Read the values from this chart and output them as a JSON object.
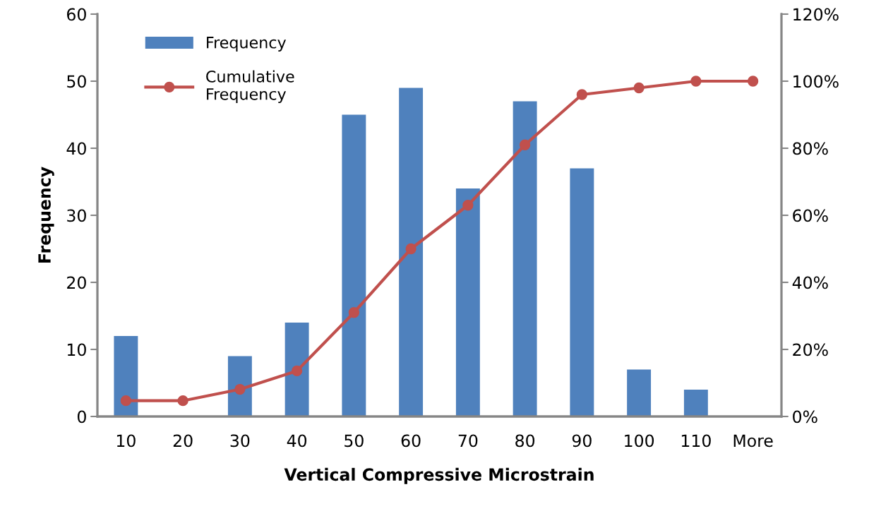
{
  "chart_data": {
    "type": "bar",
    "xlabel": "Vertical Compressive Microstrain",
    "ylabel": "Frequency",
    "categories": [
      "10",
      "20",
      "30",
      "40",
      "50",
      "60",
      "70",
      "80",
      "90",
      "100",
      "110",
      "More"
    ],
    "series": [
      {
        "name": "Frequency",
        "color": "#4f81bd",
        "values": [
          12,
          0,
          9,
          14,
          45,
          49,
          34,
          47,
          37,
          7,
          4,
          0
        ]
      },
      {
        "name": "Cumulative\nFrequency",
        "type": "line",
        "axis": "y2",
        "color": "#c0504d",
        "marker": "circle",
        "values": [
          4.7,
          4.7,
          8.1,
          13.6,
          31,
          50,
          63,
          81,
          96,
          98,
          100,
          100
        ]
      }
    ],
    "ylim": [
      0,
      60
    ],
    "yticks": [
      0,
      10,
      20,
      30,
      40,
      50,
      60
    ],
    "y2lim": [
      0,
      120
    ],
    "y2ticks": [
      {
        "value": 0,
        "label": "0%"
      },
      {
        "value": 20,
        "label": "20%"
      },
      {
        "value": 40,
        "label": "40%"
      },
      {
        "value": 60,
        "label": "60%"
      },
      {
        "value": 80,
        "label": "80%"
      },
      {
        "value": 100,
        "label": "100%"
      },
      {
        "value": 120,
        "label": "120%"
      }
    ],
    "grid": false,
    "legend": "top left"
  }
}
